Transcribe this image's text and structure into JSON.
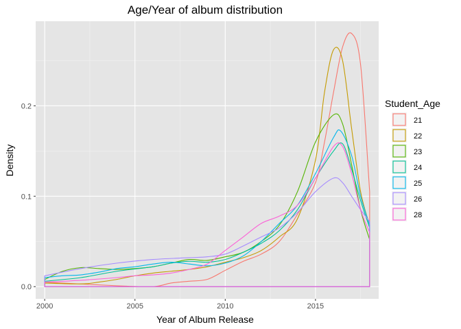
{
  "chart_data": {
    "type": "area",
    "title": "Age/Year of album distribution",
    "xlabel": "Year of Album Release",
    "ylabel": "Density",
    "xlim": [
      1999.5,
      2018.5
    ],
    "ylim": [
      -0.0135,
      0.2935
    ],
    "x_ticks": [
      2000,
      2005,
      2010,
      2015
    ],
    "x_tick_labels": [
      "2000",
      "2005",
      "2010",
      "2015"
    ],
    "y_ticks": [
      0.0,
      0.1,
      0.2
    ],
    "y_tick_labels": [
      "0.0",
      "0.1",
      "0.2"
    ],
    "grid": true,
    "background": "#e5e5e5",
    "legend": {
      "title": "Student_Age",
      "position": "right"
    },
    "x_range": [
      2000,
      2018
    ],
    "series": [
      {
        "name": "21",
        "color": "#f8766d",
        "points": [
          [
            2000,
            0.005
          ],
          [
            2004,
            0.001
          ],
          [
            2006,
            0.0
          ],
          [
            2007,
            0.004
          ],
          [
            2008,
            0.006
          ],
          [
            2009,
            0.008
          ],
          [
            2010,
            0.018
          ],
          [
            2011,
            0.028
          ],
          [
            2012,
            0.036
          ],
          [
            2013,
            0.05
          ],
          [
            2014,
            0.08
          ],
          [
            2015,
            0.115
          ],
          [
            2015.5,
            0.16
          ],
          [
            2016,
            0.215
          ],
          [
            2016.5,
            0.265
          ],
          [
            2017,
            0.28
          ],
          [
            2017.5,
            0.245
          ],
          [
            2018,
            0.105
          ]
        ]
      },
      {
        "name": "22",
        "color": "#c49a00",
        "points": [
          [
            2000,
            0.004
          ],
          [
            2002,
            0.003
          ],
          [
            2003,
            0.005
          ],
          [
            2004,
            0.008
          ],
          [
            2005,
            0.012
          ],
          [
            2006,
            0.015
          ],
          [
            2007,
            0.017
          ],
          [
            2008,
            0.019
          ],
          [
            2009,
            0.022
          ],
          [
            2010,
            0.027
          ],
          [
            2011,
            0.032
          ],
          [
            2012,
            0.04
          ],
          [
            2013,
            0.055
          ],
          [
            2014,
            0.075
          ],
          [
            2015,
            0.14
          ],
          [
            2015.5,
            0.215
          ],
          [
            2016,
            0.262
          ],
          [
            2016.5,
            0.25
          ],
          [
            2017,
            0.175
          ],
          [
            2017.5,
            0.105
          ],
          [
            2018,
            0.068
          ]
        ]
      },
      {
        "name": "23",
        "color": "#53b400",
        "points": [
          [
            2000,
            0.008
          ],
          [
            2001,
            0.017
          ],
          [
            2002,
            0.021
          ],
          [
            2003,
            0.02
          ],
          [
            2004,
            0.019
          ],
          [
            2005,
            0.02
          ],
          [
            2006,
            0.022
          ],
          [
            2007,
            0.026
          ],
          [
            2008,
            0.03
          ],
          [
            2009,
            0.029
          ],
          [
            2010,
            0.033
          ],
          [
            2011,
            0.038
          ],
          [
            2012,
            0.05
          ],
          [
            2013,
            0.068
          ],
          [
            2014,
            0.105
          ],
          [
            2015,
            0.16
          ],
          [
            2016,
            0.19
          ],
          [
            2016.5,
            0.18
          ],
          [
            2017,
            0.135
          ],
          [
            2017.5,
            0.085
          ],
          [
            2018,
            0.052
          ]
        ]
      },
      {
        "name": "24",
        "color": "#00c094",
        "points": [
          [
            2000,
            0.006
          ],
          [
            2002,
            0.01
          ],
          [
            2004,
            0.017
          ],
          [
            2006,
            0.022
          ],
          [
            2007,
            0.026
          ],
          [
            2008,
            0.028
          ],
          [
            2009,
            0.027
          ],
          [
            2010,
            0.03
          ],
          [
            2011,
            0.038
          ],
          [
            2012,
            0.048
          ],
          [
            2013,
            0.062
          ],
          [
            2014,
            0.085
          ],
          [
            2015,
            0.12
          ],
          [
            2016,
            0.15
          ],
          [
            2016.5,
            0.158
          ],
          [
            2017,
            0.13
          ],
          [
            2017.5,
            0.095
          ],
          [
            2018,
            0.065
          ]
        ]
      },
      {
        "name": "25",
        "color": "#00b6eb",
        "points": [
          [
            2000,
            0.01
          ],
          [
            2001,
            0.012
          ],
          [
            2002,
            0.013
          ],
          [
            2003,
            0.016
          ],
          [
            2004,
            0.02
          ],
          [
            2005,
            0.022
          ],
          [
            2006,
            0.025
          ],
          [
            2007,
            0.027
          ],
          [
            2008,
            0.025
          ],
          [
            2009,
            0.023
          ],
          [
            2010,
            0.026
          ],
          [
            2011,
            0.034
          ],
          [
            2012,
            0.05
          ],
          [
            2013,
            0.07
          ],
          [
            2014,
            0.09
          ],
          [
            2015,
            0.125
          ],
          [
            2016,
            0.165
          ],
          [
            2016.4,
            0.172
          ],
          [
            2017,
            0.145
          ],
          [
            2017.5,
            0.1
          ],
          [
            2018,
            0.068
          ]
        ]
      },
      {
        "name": "26",
        "color": "#a58aff",
        "points": [
          [
            2000,
            0.012
          ],
          [
            2002,
            0.02
          ],
          [
            2004,
            0.026
          ],
          [
            2006,
            0.03
          ],
          [
            2008,
            0.032
          ],
          [
            2009,
            0.033
          ],
          [
            2010,
            0.036
          ],
          [
            2011,
            0.045
          ],
          [
            2012,
            0.055
          ],
          [
            2013,
            0.065
          ],
          [
            2014,
            0.082
          ],
          [
            2015,
            0.105
          ],
          [
            2016,
            0.12
          ],
          [
            2016.5,
            0.115
          ],
          [
            2017,
            0.1
          ],
          [
            2017.5,
            0.085
          ],
          [
            2018,
            0.072
          ]
        ]
      },
      {
        "name": "28",
        "color": "#fb61d7",
        "points": [
          [
            2000,
            0.005
          ],
          [
            2002,
            0.007
          ],
          [
            2004,
            0.01
          ],
          [
            2005,
            0.012
          ],
          [
            2006,
            0.013
          ],
          [
            2007,
            0.015
          ],
          [
            2008,
            0.019
          ],
          [
            2009,
            0.025
          ],
          [
            2010,
            0.04
          ],
          [
            2011,
            0.055
          ],
          [
            2012,
            0.07
          ],
          [
            2013,
            0.078
          ],
          [
            2014,
            0.09
          ],
          [
            2015,
            0.12
          ],
          [
            2016,
            0.155
          ],
          [
            2016.5,
            0.155
          ],
          [
            2017,
            0.125
          ],
          [
            2017.5,
            0.085
          ],
          [
            2018,
            0.06
          ]
        ]
      }
    ]
  }
}
